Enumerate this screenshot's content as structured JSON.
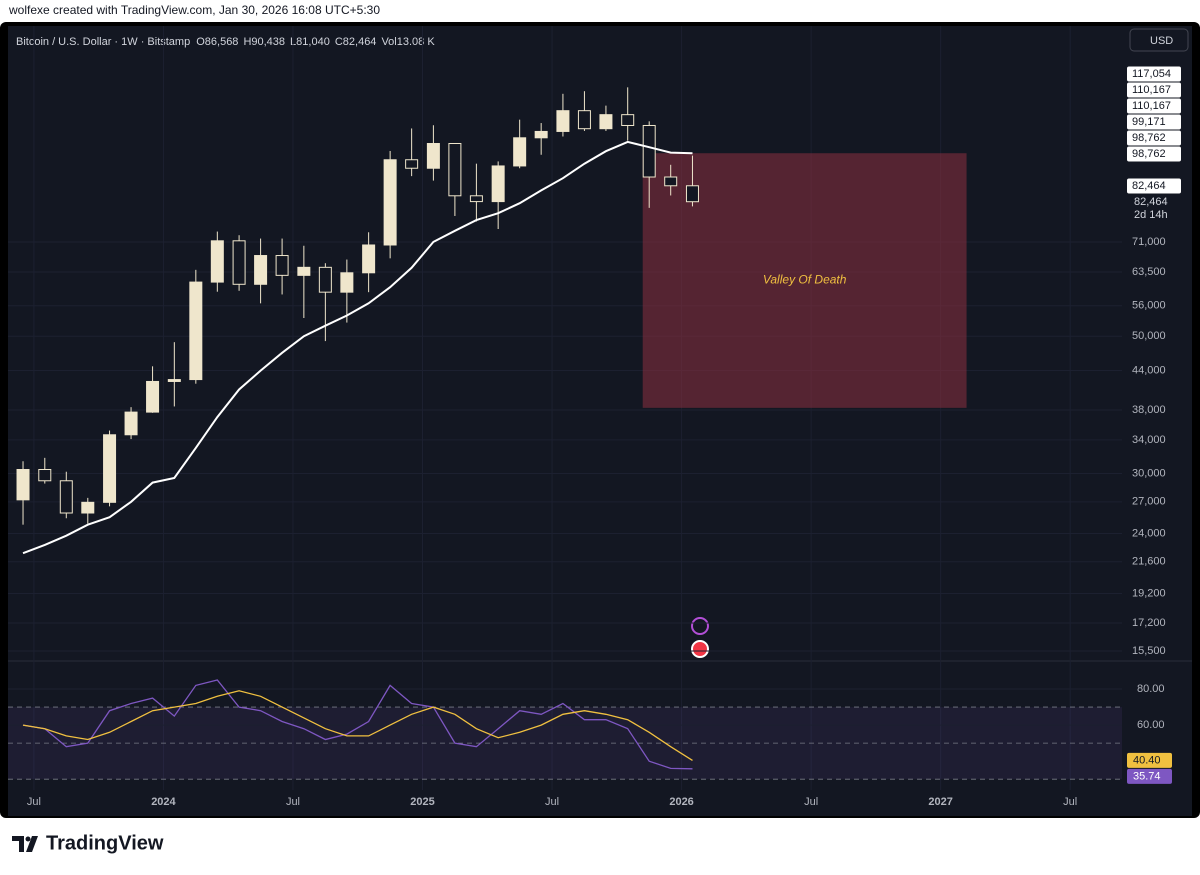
{
  "attribution": "wolfexe created with TradingView.com, Jan 30, 2026 16:08 UTC+5:30",
  "brand": "TradingView",
  "chart_data": [
    {
      "type": "candlestick",
      "symbol": "Bitcoin / U.S. Dollar · 1W · Bitstamp",
      "ohlc_legend": [
        {
          "label": "O",
          "value": "86,568"
        },
        {
          "label": "H",
          "value": "90,438"
        },
        {
          "label": "L",
          "value": "81,040"
        },
        {
          "label": "C",
          "value": "82,464"
        },
        {
          "label": "Vol",
          "value": "13.08 K"
        }
      ],
      "currency": "USD",
      "log_scale": true,
      "up_color": "#efe6cc",
      "down_color": "#131722",
      "xlim": [
        2023.4,
        2027.7
      ],
      "xticks": [
        {
          "value": 2023.5,
          "label": "Jul"
        },
        {
          "value": 2024,
          "label": "2024"
        },
        {
          "value": 2024.5,
          "label": "Jul"
        },
        {
          "value": 2025,
          "label": "2025"
        },
        {
          "value": 2025.5,
          "label": "Jul"
        },
        {
          "value": 2026,
          "label": "2026"
        },
        {
          "value": 2026.5,
          "label": "Jul"
        },
        {
          "value": 2027,
          "label": "2027"
        },
        {
          "value": 2027.5,
          "label": "Jul"
        }
      ],
      "ylim": [
        14990,
        150500
      ],
      "yticks": [
        {
          "value": 71000,
          "label": "71,000"
        },
        {
          "value": 63500,
          "label": "63,500"
        },
        {
          "value": 56000,
          "label": "56,000"
        },
        {
          "value": 50000,
          "label": "50,000"
        },
        {
          "value": 44000,
          "label": "44,000"
        },
        {
          "value": 38000,
          "label": "38,000"
        },
        {
          "value": 34000,
          "label": "34,000"
        },
        {
          "value": 30000,
          "label": "30,000"
        },
        {
          "value": 27000,
          "label": "27,000"
        },
        {
          "value": 24000,
          "label": "24,000"
        },
        {
          "value": 21600,
          "label": "21,600"
        },
        {
          "value": 19200,
          "label": "19,200"
        },
        {
          "value": 17200,
          "label": "17,200"
        },
        {
          "value": 15500,
          "label": "15,500"
        }
      ],
      "x": [
        2023.458,
        2023.542,
        2023.625,
        2023.708,
        2023.792,
        2023.875,
        2023.958,
        2024.042,
        2024.125,
        2024.208,
        2024.292,
        2024.375,
        2024.458,
        2024.542,
        2024.625,
        2024.708,
        2024.792,
        2024.875,
        2024.958,
        2025.042,
        2025.125,
        2025.208,
        2025.292,
        2025.375,
        2025.458,
        2025.542,
        2025.625,
        2025.708,
        2025.792,
        2025.875,
        2025.958,
        2026.042
      ],
      "open": [
        27200,
        30450,
        29200,
        25900,
        26950,
        34650,
        37700,
        42250,
        42550,
        61150,
        71300,
        60650,
        67500,
        62700,
        64600,
        58900,
        63300,
        70200,
        96400,
        93400,
        102400,
        84300,
        82500,
        94200,
        104600,
        107100,
        115700,
        108200,
        114000,
        109500,
        90400,
        87500
      ],
      "high": [
        31400,
        31800,
        30200,
        27400,
        35200,
        38400,
        44700,
        48900,
        64000,
        73800,
        72800,
        71900,
        71900,
        70000,
        65600,
        66500,
        73600,
        99600,
        108300,
        109600,
        102500,
        95000,
        95800,
        111900,
        110500,
        123200,
        124400,
        117900,
        126200,
        111200,
        94600,
        97900
      ],
      "low": [
        24800,
        28900,
        25400,
        24900,
        26550,
        34100,
        37600,
        38500,
        41900,
        59000,
        59200,
        56500,
        58400,
        53500,
        49100,
        52600,
        58900,
        66800,
        90700,
        89200,
        78200,
        76600,
        74500,
        93400,
        98200,
        105100,
        107300,
        107300,
        103500,
        80600,
        84400,
        81040
      ],
      "close": [
        30450,
        29200,
        25900,
        26950,
        34650,
        37700,
        42250,
        42550,
        61150,
        71300,
        60650,
        67500,
        62700,
        64600,
        58900,
        63300,
        70200,
        96400,
        93400,
        102400,
        84300,
        82500,
        94200,
        104600,
        107100,
        115700,
        108200,
        114000,
        109500,
        90400,
        87500,
        82464
      ],
      "ma": {
        "color": "#ffffff",
        "values": [
          22300,
          23000,
          23800,
          24800,
          25500,
          27000,
          29000,
          29500,
          33000,
          37000,
          41000,
          44000,
          47000,
          50000,
          52000,
          54000,
          56500,
          60000,
          64500,
          71000,
          74000,
          77000,
          79000,
          82000,
          86000,
          90000,
          95000,
          99500,
          103000,
          101000,
          99000,
          98762
        ]
      },
      "zone": {
        "label": "Valley Of Death",
        "x": [
          2025.85,
          2027.1
        ],
        "y": [
          38300,
          98762
        ],
        "color": "#8c2f3f",
        "text_color": "#f0c040"
      },
      "price_labels": [
        {
          "label": "117,054",
          "bg": "#ffffff"
        },
        {
          "label": "110,167",
          "bg": "#ffffff"
        },
        {
          "label": "110,167",
          "bg": "#ffffff"
        },
        {
          "label": "99,171",
          "bg": "#ffffff"
        },
        {
          "label": "98,762",
          "bg": "#ffffff"
        },
        {
          "label": "98,762",
          "bg": "#ffffff"
        },
        {
          "label": "82,464",
          "bg": "#ffffff"
        }
      ],
      "last_price": "82,464",
      "countdown": "2d 14h"
    },
    {
      "type": "line",
      "x": [
        2023.458,
        2023.542,
        2023.625,
        2023.708,
        2023.792,
        2023.875,
        2023.958,
        2024.042,
        2024.125,
        2024.208,
        2024.292,
        2024.375,
        2024.458,
        2024.542,
        2024.625,
        2024.708,
        2024.792,
        2024.875,
        2024.958,
        2025.042,
        2025.125,
        2025.208,
        2025.292,
        2025.375,
        2025.458,
        2025.542,
        2025.625,
        2025.708,
        2025.792,
        2025.875,
        2025.958,
        2026.042
      ],
      "xlim": [
        2023.4,
        2027.7
      ],
      "ylim": [
        24,
        95
      ],
      "yticks": [
        {
          "value": 80,
          "label": "80.00"
        },
        {
          "value": 60,
          "label": "60.00"
        }
      ],
      "levels": [
        70,
        50,
        30
      ],
      "band": [
        30,
        70
      ],
      "series": [
        {
          "color": "#7e57c2",
          "label": "35.74",
          "values": [
            60,
            58,
            48,
            50,
            68,
            72,
            75,
            65,
            82,
            85,
            70,
            68,
            62,
            58,
            52,
            55,
            62,
            82,
            72,
            70,
            50,
            48,
            58,
            68,
            66,
            72,
            63,
            63,
            58,
            40,
            36,
            35.74
          ]
        },
        {
          "color": "#f0c040",
          "label": "40.40",
          "values": [
            60,
            58,
            54,
            52,
            56,
            62,
            68,
            70,
            72,
            76,
            79,
            76,
            70,
            64,
            58,
            54,
            54,
            60,
            66,
            70,
            66,
            58,
            53,
            56,
            60,
            66,
            68,
            66,
            63,
            56,
            48,
            40.4
          ]
        }
      ]
    }
  ]
}
